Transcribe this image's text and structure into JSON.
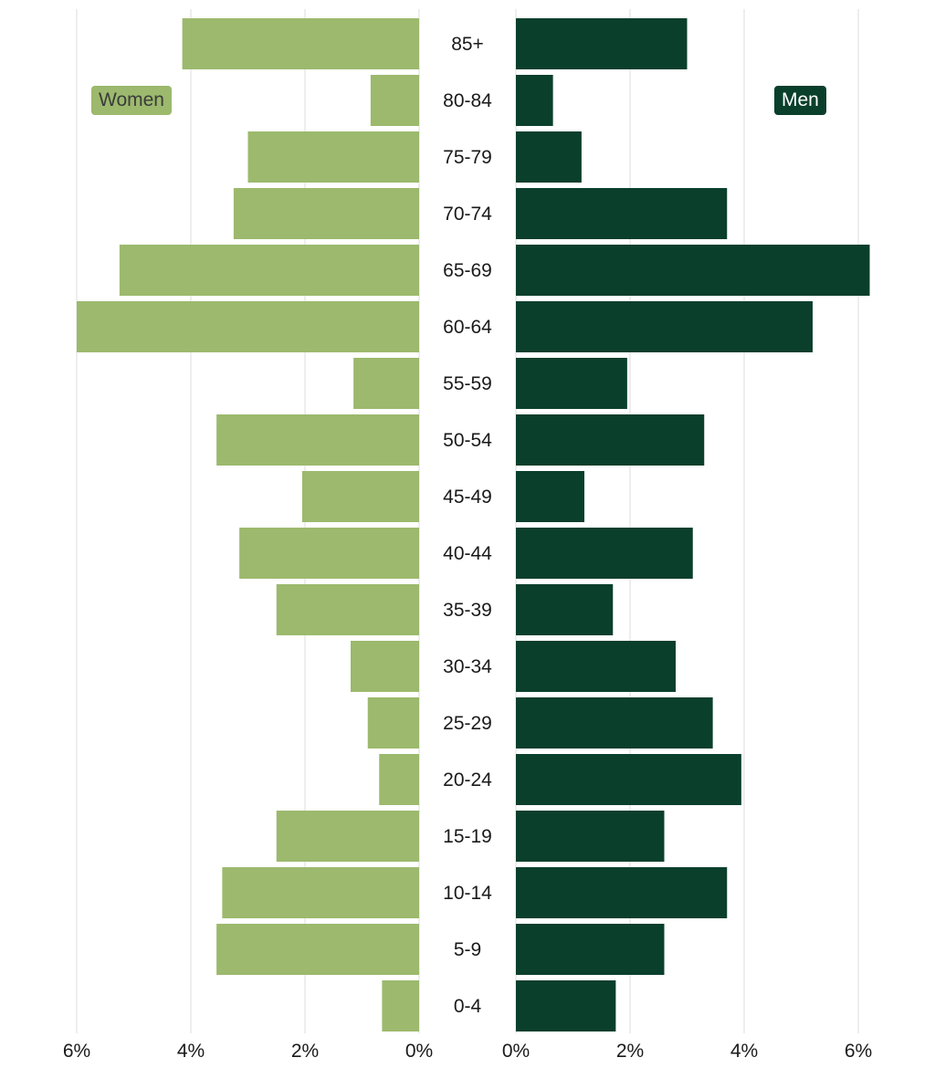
{
  "chart_data": {
    "type": "bar",
    "orientation": "horizontal",
    "style": "population pyramid",
    "categories": [
      "85+",
      "80-84",
      "75-79",
      "70-74",
      "65-69",
      "60-64",
      "55-59",
      "50-54",
      "45-49",
      "40-44",
      "35-39",
      "30-34",
      "25-29",
      "20-24",
      "15-19",
      "10-14",
      "5-9",
      "0-4"
    ],
    "series": [
      {
        "name": "Women",
        "color": "#9cb96d",
        "values": [
          4.15,
          0.85,
          3.0,
          3.25,
          5.25,
          6.0,
          1.15,
          3.55,
          2.05,
          3.15,
          2.5,
          1.2,
          0.9,
          0.7,
          2.5,
          3.45,
          3.55,
          0.65
        ]
      },
      {
        "name": "Men",
        "color": "#0a3f2c",
        "values": [
          3.0,
          0.65,
          1.15,
          3.7,
          6.2,
          5.2,
          1.95,
          3.3,
          1.2,
          3.1,
          1.7,
          2.8,
          3.45,
          3.95,
          2.6,
          3.7,
          2.6,
          1.75
        ]
      }
    ],
    "xlim": [
      0,
      6
    ],
    "xticks": [
      "6%",
      "4%",
      "2%",
      "0%"
    ],
    "xticks_right": [
      "0%",
      "2%",
      "4%",
      "6%"
    ],
    "grid": true,
    "legend_placement": "top-left and top-right"
  },
  "legend": {
    "women": "Women",
    "men": "Men"
  }
}
